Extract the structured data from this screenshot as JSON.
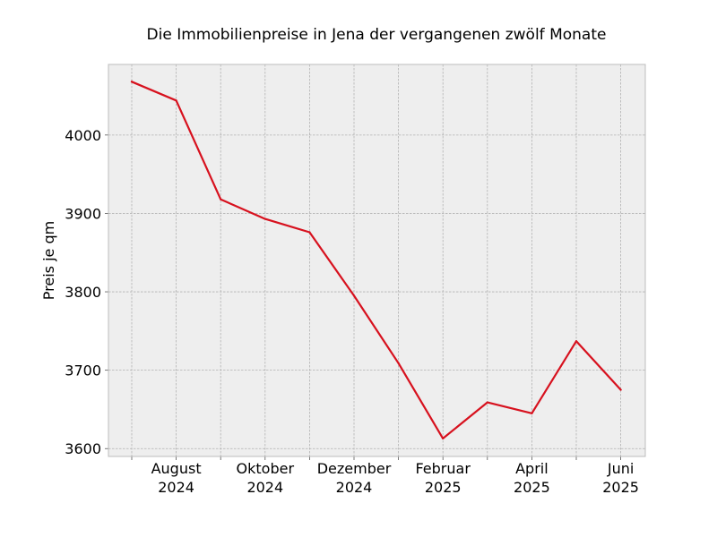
{
  "chart_data": {
    "type": "line",
    "title": "Die Immobilienpreise in Jena der vergangenen zwölf Monate",
    "xlabel": "",
    "ylabel": "Preis je qm",
    "x": [
      "2024-07",
      "2024-08",
      "2024-09",
      "2024-10",
      "2024-11",
      "2024-12",
      "2025-01",
      "2025-02",
      "2025-03",
      "2025-04",
      "2025-05",
      "2025-06"
    ],
    "series": [
      {
        "values": [
          4068,
          4044,
          3918,
          3893,
          3876,
          3795,
          3709,
          3613,
          3659,
          3645,
          3737,
          3675
        ]
      }
    ],
    "ylim": [
      3590,
      4090
    ],
    "yticks": [
      3600,
      3700,
      3800,
      3900,
      4000
    ],
    "xticks": [
      {
        "x": "2024-08",
        "line1": "August",
        "line2": "2024"
      },
      {
        "x": "2024-10",
        "line1": "Oktober",
        "line2": "2024"
      },
      {
        "x": "2024-12",
        "line1": "Dezember",
        "line2": "2024"
      },
      {
        "x": "2025-02",
        "line1": "Februar",
        "line2": "2025"
      },
      {
        "x": "2025-04",
        "line1": "April",
        "line2": "2025"
      },
      {
        "x": "2025-06",
        "line1": "Juni",
        "line2": "2025"
      }
    ],
    "grid": true,
    "colors": {
      "line": "#d7111e",
      "background": "#eeeeee",
      "grid": "#b2b2b2",
      "frame": "#bcbcbc"
    }
  }
}
